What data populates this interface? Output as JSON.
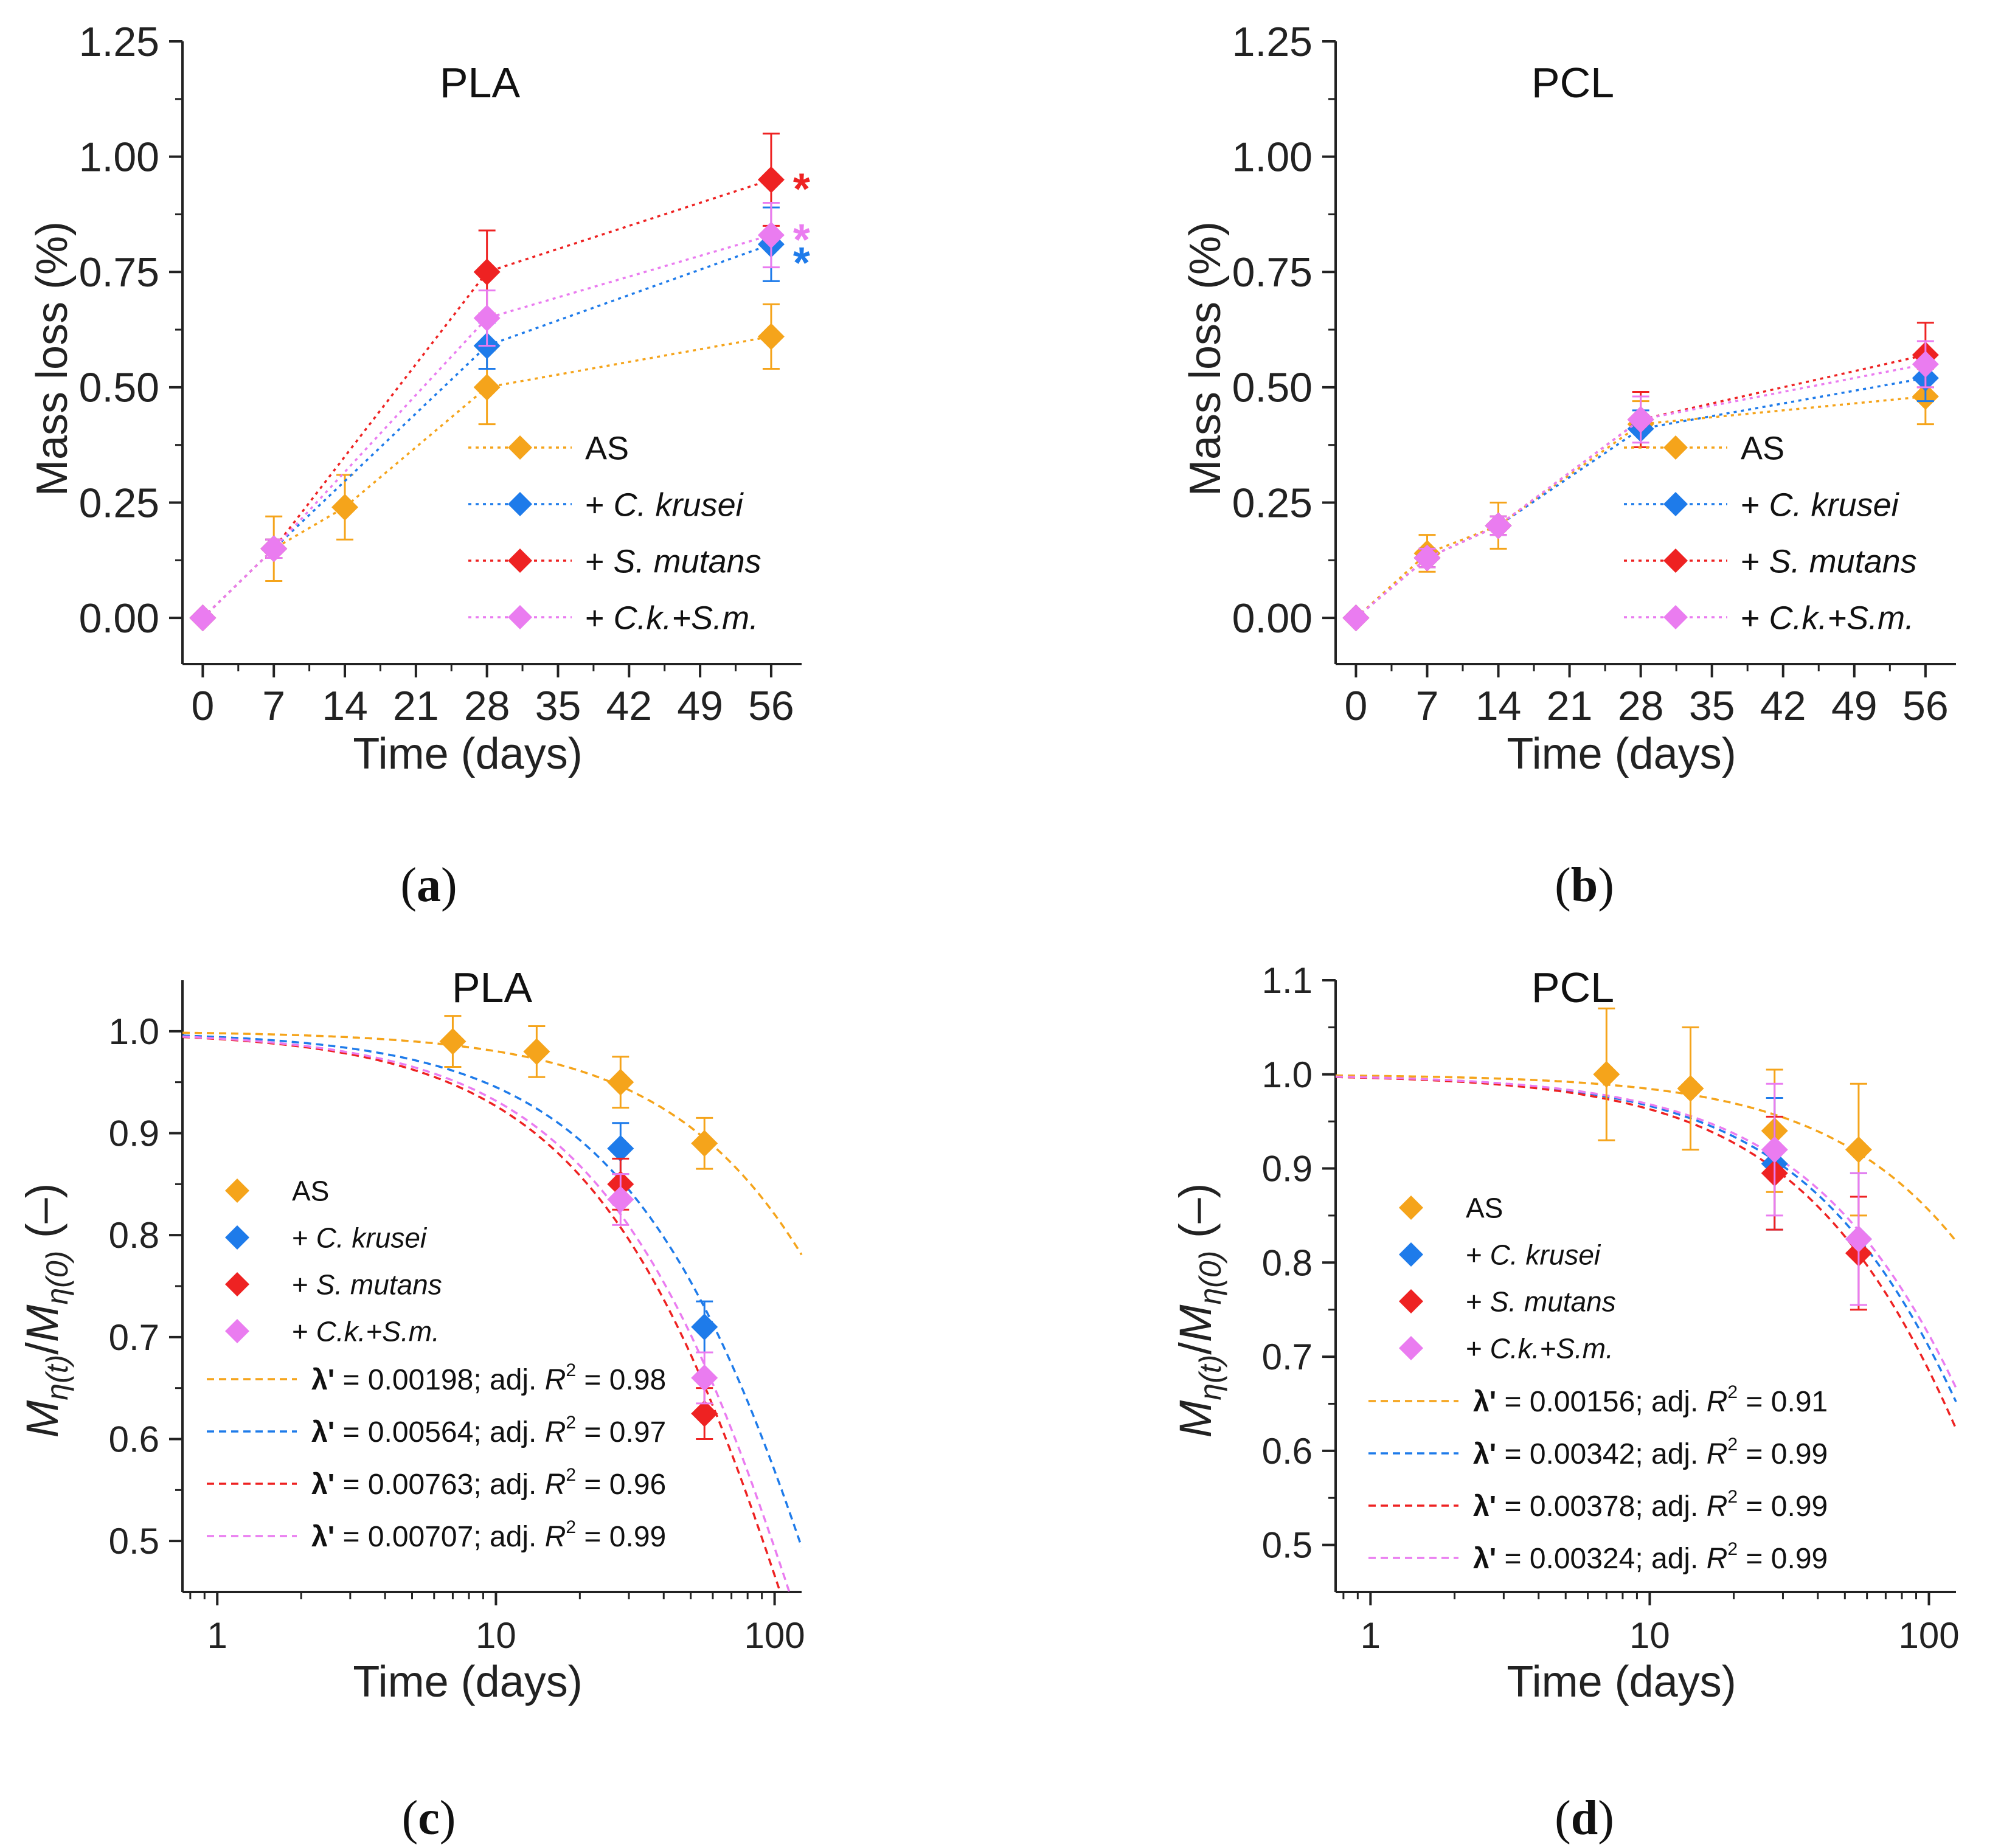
{
  "colors": {
    "AS": "#F5A41B",
    "Ck": "#1E7BEA",
    "Sm": "#EE2222",
    "CkSm": "#EA7CF0",
    "axis": "#222222"
  },
  "chart_data": [
    {
      "panel": "(a)",
      "type": "line",
      "scale": "linear",
      "title": "PLA",
      "xlabel": "Time (days)",
      "ylabel": "Mass loss (%)",
      "xlim": [
        -2,
        59
      ],
      "ylim": [
        -0.1,
        1.25
      ],
      "xticks": [
        0,
        7,
        14,
        21,
        28,
        35,
        42,
        49,
        56
      ],
      "xtick_labels": [
        "0",
        "7",
        "14",
        "21",
        "28",
        "35",
        "42",
        "49",
        "56"
      ],
      "yticks": [
        0,
        0.25,
        0.5,
        0.75,
        1.0,
        1.25
      ],
      "ytick_labels": [
        "0.00",
        "0.25",
        "0.50",
        "0.75",
        "1.00",
        "1.25"
      ],
      "legend": [
        "AS",
        "+ C. krusei",
        "+ S. mutans",
        "+ C.k.+S.m."
      ],
      "series": [
        {
          "name": "AS",
          "color": "AS",
          "x": [
            0,
            7,
            14,
            28,
            56
          ],
          "y": [
            0,
            0.15,
            0.24,
            0.5,
            0.61
          ],
          "err": [
            0,
            0.07,
            0.07,
            0.08,
            0.07
          ]
        },
        {
          "name": "+ C. krusei",
          "color": "Ck",
          "x": [
            0,
            7,
            28,
            56
          ],
          "y": [
            0,
            0.15,
            0.59,
            0.81
          ],
          "err": [
            0,
            0.02,
            0.05,
            0.08
          ]
        },
        {
          "name": "+ S. mutans",
          "color": "Sm",
          "x": [
            0,
            7,
            28,
            56
          ],
          "y": [
            0,
            0.15,
            0.75,
            0.95
          ],
          "err": [
            0,
            0.02,
            0.09,
            0.1
          ]
        },
        {
          "name": "+ C.k.+S.m.",
          "color": "CkSm",
          "x": [
            0,
            7,
            28,
            56
          ],
          "y": [
            0,
            0.15,
            0.65,
            0.83
          ],
          "err": [
            0,
            0.02,
            0.06,
            0.07
          ]
        }
      ],
      "annotations": [
        {
          "text": "*",
          "x": 56,
          "y": 0.95,
          "color": "Sm"
        },
        {
          "text": "*",
          "x": 56,
          "y": 0.84,
          "color": "CkSm"
        },
        {
          "text": "*",
          "x": 56,
          "y": 0.79,
          "color": "Ck"
        }
      ]
    },
    {
      "panel": "(b)",
      "type": "line",
      "scale": "linear",
      "title": "PCL",
      "xlabel": "Time (days)",
      "ylabel": "Mass loss (%)",
      "xlim": [
        -2,
        59
      ],
      "ylim": [
        -0.1,
        1.25
      ],
      "xticks": [
        0,
        7,
        14,
        21,
        28,
        35,
        42,
        49,
        56
      ],
      "xtick_labels": [
        "0",
        "7",
        "14",
        "21",
        "28",
        "35",
        "42",
        "49",
        "56"
      ],
      "yticks": [
        0,
        0.25,
        0.5,
        0.75,
        1.0,
        1.25
      ],
      "ytick_labels": [
        "0.00",
        "0.25",
        "0.50",
        "0.75",
        "1.00",
        "1.25"
      ],
      "legend": [
        "AS",
        "+ C. krusei",
        "+ S. mutans",
        "+ C.k.+S.m."
      ],
      "series": [
        {
          "name": "AS",
          "color": "AS",
          "x": [
            0,
            7,
            14,
            28,
            56
          ],
          "y": [
            0,
            0.14,
            0.2,
            0.42,
            0.48
          ],
          "err": [
            0,
            0.04,
            0.05,
            0.05,
            0.06
          ]
        },
        {
          "name": "+ C. krusei",
          "color": "Ck",
          "x": [
            0,
            7,
            14,
            28,
            56
          ],
          "y": [
            0,
            0.13,
            0.2,
            0.41,
            0.52
          ],
          "err": [
            0,
            0.02,
            0.02,
            0.04,
            0.05
          ]
        },
        {
          "name": "+ S. mutans",
          "color": "Sm",
          "x": [
            0,
            7,
            14,
            28,
            56
          ],
          "y": [
            0,
            0.13,
            0.2,
            0.43,
            0.57
          ],
          "err": [
            0,
            0.02,
            0.02,
            0.06,
            0.07
          ]
        },
        {
          "name": "+ C.k.+S.m.",
          "color": "CkSm",
          "x": [
            0,
            7,
            14,
            28,
            56
          ],
          "y": [
            0,
            0.13,
            0.2,
            0.43,
            0.55
          ],
          "err": [
            0,
            0.02,
            0.02,
            0.05,
            0.05
          ]
        }
      ]
    },
    {
      "panel": "(c)",
      "type": "scatter",
      "scale": "log-x",
      "title": "PLA",
      "xlabel": "Time (days)",
      "ylabel": "M_η(t)/M_η(0) (–)",
      "xlim": [
        0.75,
        125
      ],
      "ylim": [
        0.45,
        1.05
      ],
      "xticks": [
        1,
        10,
        100
      ],
      "xtick_labels": [
        "1",
        "10",
        "100"
      ],
      "yticks": [
        0.5,
        0.6,
        0.7,
        0.8,
        0.9,
        1.0
      ],
      "ytick_labels": [
        "0.5",
        "0.6",
        "0.7",
        "0.8",
        "0.9",
        "1.0"
      ],
      "legend": [
        "AS",
        "+ C. krusei",
        "+ S. mutans",
        "+ C.k.+S.m."
      ],
      "series": [
        {
          "name": "AS",
          "color": "AS",
          "x": [
            7,
            14,
            28,
            56
          ],
          "y": [
            0.99,
            0.98,
            0.95,
            0.89
          ],
          "err": [
            0.025,
            0.025,
            0.025,
            0.025
          ]
        },
        {
          "name": "+ C. krusei",
          "color": "Ck",
          "x": [
            28,
            56
          ],
          "y": [
            0.885,
            0.71
          ],
          "err": [
            0.025,
            0.025
          ]
        },
        {
          "name": "+ S. mutans",
          "color": "Sm",
          "x": [
            28,
            56
          ],
          "y": [
            0.85,
            0.625
          ],
          "err": [
            0.025,
            0.025
          ]
        },
        {
          "name": "+ C.k.+S.m.",
          "color": "CkSm",
          "x": [
            28,
            56
          ],
          "y": [
            0.835,
            0.66
          ],
          "err": [
            0.025,
            0.025
          ]
        }
      ],
      "fits": [
        {
          "color": "AS",
          "lambda": 0.00198,
          "prefix": "λ'",
          "text": " = 0.00198; adj. ",
          "r2_label": "R",
          "r2_sup": "2",
          "r2_text": " = 0.98"
        },
        {
          "color": "Ck",
          "lambda": 0.00564,
          "prefix": "λ'",
          "text": " = 0.00564; adj. ",
          "r2_label": "R",
          "r2_sup": "2",
          "r2_text": " = 0.97"
        },
        {
          "color": "Sm",
          "lambda": 0.00763,
          "prefix": "λ'",
          "text": " = 0.00763; adj. ",
          "r2_label": "R",
          "r2_sup": "2",
          "r2_text": " = 0.96"
        },
        {
          "color": "CkSm",
          "lambda": 0.00707,
          "prefix": "λ'",
          "text": " = 0.00707; adj. ",
          "r2_label": "R",
          "r2_sup": "2",
          "r2_text": " = 0.99"
        }
      ]
    },
    {
      "panel": "(d)",
      "type": "scatter",
      "scale": "log-x",
      "title": "PCL",
      "xlabel": "Time (days)",
      "ylabel": "M_η(t)/M_η(0) (–)",
      "xlim": [
        0.75,
        125
      ],
      "ylim": [
        0.45,
        1.1
      ],
      "xticks": [
        1,
        10,
        100
      ],
      "xtick_labels": [
        "1",
        "10",
        "100"
      ],
      "yticks": [
        0.5,
        0.6,
        0.7,
        0.8,
        0.9,
        1.0,
        1.1
      ],
      "ytick_labels": [
        "0.5",
        "0.6",
        "0.7",
        "0.8",
        "0.9",
        "1.0",
        "1.1"
      ],
      "legend": [
        "AS",
        "+ C. krusei",
        "+ S. mutans",
        "+ C.k.+S.m."
      ],
      "series": [
        {
          "name": "AS",
          "color": "AS",
          "x": [
            7,
            14,
            28,
            56
          ],
          "y": [
            1.0,
            0.985,
            0.94,
            0.92
          ],
          "err": [
            0.07,
            0.065,
            0.065,
            0.07
          ]
        },
        {
          "name": "+ C. krusei",
          "color": "Ck",
          "x": [
            28,
            56
          ],
          "y": [
            0.905,
            0.825
          ],
          "err": [
            0.07,
            0.07
          ]
        },
        {
          "name": "+ S. mutans",
          "color": "Sm",
          "x": [
            28,
            56
          ],
          "y": [
            0.895,
            0.81
          ],
          "err": [
            0.06,
            0.06
          ]
        },
        {
          "name": "+ C.k.+S.m.",
          "color": "CkSm",
          "x": [
            28,
            56
          ],
          "y": [
            0.92,
            0.825
          ],
          "err": [
            0.07,
            0.07
          ]
        }
      ],
      "fits": [
        {
          "color": "AS",
          "lambda": 0.00156,
          "prefix": "λ'",
          "text": " = 0.00156; adj. ",
          "r2_label": "R",
          "r2_sup": "2",
          "r2_text": " = 0.91"
        },
        {
          "color": "Ck",
          "lambda": 0.00342,
          "prefix": "λ'",
          "text": " = 0.00342; adj. ",
          "r2_label": "R",
          "r2_sup": "2",
          "r2_text": " = 0.99"
        },
        {
          "color": "Sm",
          "lambda": 0.00378,
          "prefix": "λ'",
          "text": " = 0.00378; adj. ",
          "r2_label": "R",
          "r2_sup": "2",
          "r2_text": " = 0.99"
        },
        {
          "color": "CkSm",
          "lambda": 0.00324,
          "prefix": "λ'",
          "text": " = 0.00324; adj. ",
          "r2_label": "R",
          "r2_sup": "2",
          "r2_text": " = 0.99"
        }
      ]
    }
  ]
}
